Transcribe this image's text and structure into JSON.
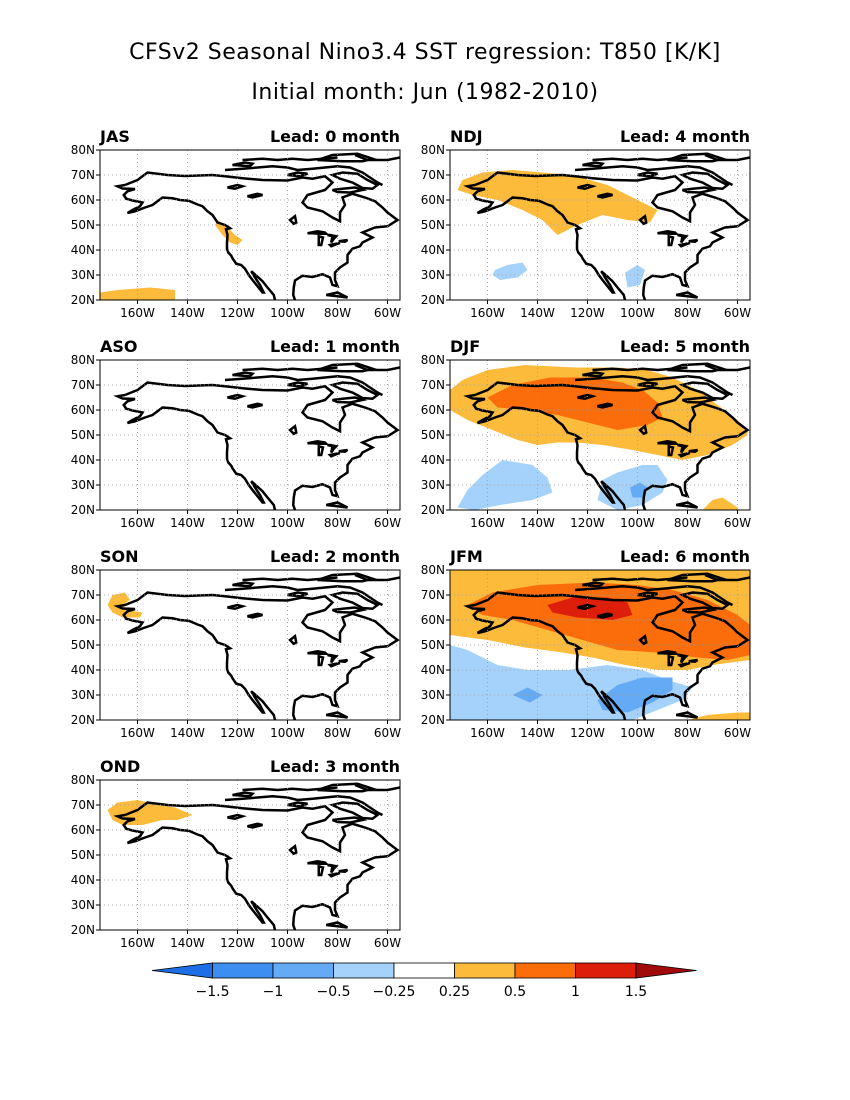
{
  "title": {
    "line1": "CFSv2 Seasonal Nino3.4 SST regression: T850 [K/K]",
    "line2": "Initial month: Jun (1982-2010)"
  },
  "axes": {
    "lat_ticks": [
      "80N",
      "70N",
      "60N",
      "50N",
      "40N",
      "30N",
      "20N"
    ],
    "lon_ticks": [
      "160W",
      "140W",
      "120W",
      "100W",
      "80W",
      "60W"
    ],
    "lat_range": [
      20,
      80
    ],
    "lon_range": [
      -175,
      -55
    ]
  },
  "panels": [
    {
      "season": "JAS",
      "lead": "Lead: 0 month"
    },
    {
      "season": "NDJ",
      "lead": "Lead: 4 month"
    },
    {
      "season": "ASO",
      "lead": "Lead: 1 month"
    },
    {
      "season": "DJF",
      "lead": "Lead: 5 month"
    },
    {
      "season": "SON",
      "lead": "Lead: 2 month"
    },
    {
      "season": "JFM",
      "lead": "Lead: 6 month"
    },
    {
      "season": "OND",
      "lead": "Lead: 3 month"
    }
  ],
  "colorbar": {
    "labels": [
      "-1.5",
      "-1",
      "-0.5",
      "-0.25",
      "0.25",
      "0.5",
      "1",
      "1.5"
    ],
    "colors": [
      "#1e6ee6",
      "#3c8ef0",
      "#64aaf5",
      "#a5d2fa",
      "#ffffff",
      "#fdbb3c",
      "#fb6c0a",
      "#dc1e0a",
      "#a00a0a"
    ]
  },
  "legend_colors": {
    "pos_025": "#fdbb3c",
    "pos_05": "#fb6c0a",
    "pos_1": "#dc1e0a",
    "neg_025": "#a5d2fa",
    "neg_05": "#64aaf5"
  }
}
